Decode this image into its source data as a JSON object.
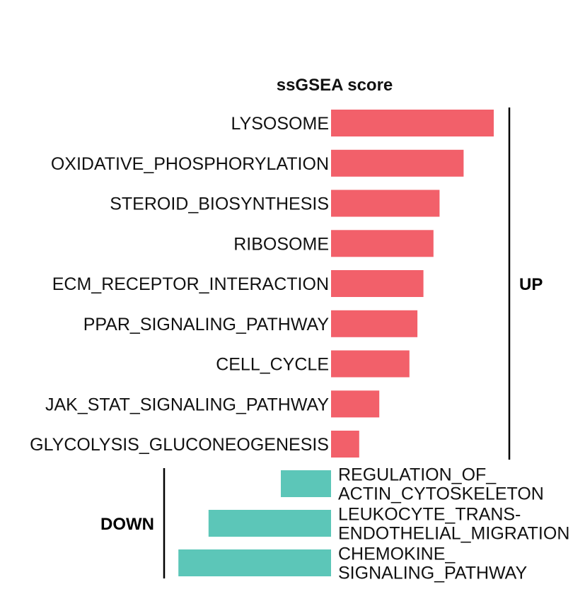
{
  "chart_data": {
    "type": "bar",
    "orientation": "horizontal",
    "title": "ssGSEA score",
    "xlabel": "",
    "ylabel": "",
    "xlim": [
      -0.76,
      0.81
    ],
    "grid": false,
    "legend": "none",
    "colors": {
      "up": "#f2606a",
      "down": "#5cc6b8"
    },
    "groups": [
      {
        "name": "UP",
        "direction": "up"
      },
      {
        "name": "DOWN",
        "direction": "down"
      }
    ],
    "bars": [
      {
        "label": [
          "LYSOSOME"
        ],
        "value": 0.81,
        "group": "UP"
      },
      {
        "label": [
          "OXIDATIVE_PHOSPHORYLATION"
        ],
        "value": 0.66,
        "group": "UP"
      },
      {
        "label": [
          "STEROID_BIOSYNTHESIS"
        ],
        "value": 0.54,
        "group": "UP"
      },
      {
        "label": [
          "RIBOSOME"
        ],
        "value": 0.51,
        "group": "UP"
      },
      {
        "label": [
          "ECM_RECEPTOR_INTERACTION"
        ],
        "value": 0.46,
        "group": "UP"
      },
      {
        "label": [
          "PPAR_SIGNALING_PATHWAY"
        ],
        "value": 0.43,
        "group": "UP"
      },
      {
        "label": [
          "CELL_CYCLE"
        ],
        "value": 0.39,
        "group": "UP"
      },
      {
        "label": [
          "JAK_STAT_SIGNALING_PATHWAY"
        ],
        "value": 0.24,
        "group": "UP"
      },
      {
        "label": [
          "GLYCOLYSIS_GLUCONEOGENESIS"
        ],
        "value": 0.14,
        "group": "UP"
      },
      {
        "label": [
          "REGULATION_OF_",
          "ACTIN_CYTOSKELETON"
        ],
        "value": -0.25,
        "group": "DOWN"
      },
      {
        "label": [
          "LEUKOCYTE_TRANS-",
          "ENDOTHELIAL_MIGRATION"
        ],
        "value": -0.61,
        "group": "DOWN"
      },
      {
        "label": [
          "CHEMOKINE_",
          "SIGNALING_PATHWAY"
        ],
        "value": -0.76,
        "group": "DOWN"
      }
    ]
  }
}
